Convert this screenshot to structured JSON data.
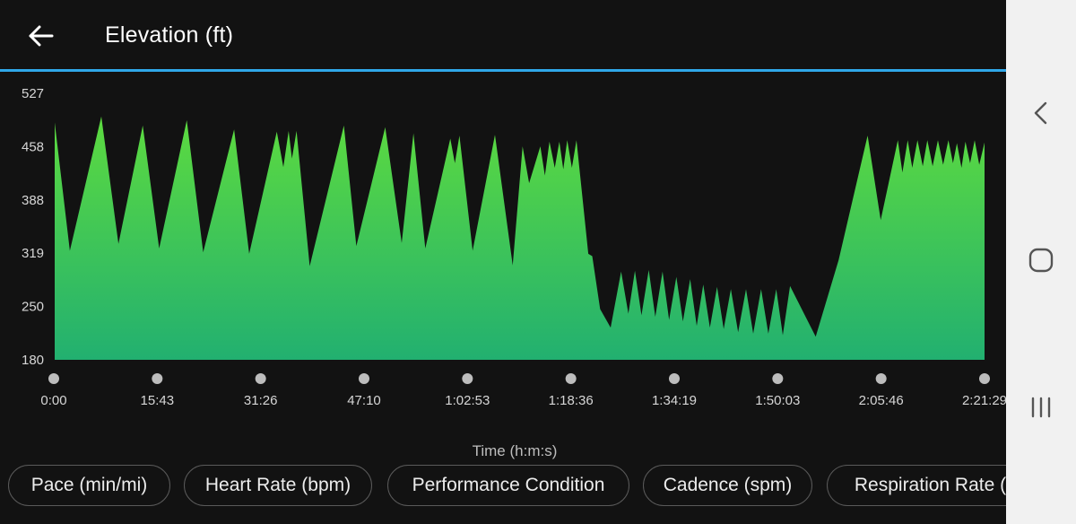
{
  "header": {
    "title": "Elevation (ft)",
    "back_icon": "arrow-left-icon"
  },
  "colors": {
    "accent": "#2fa7e8",
    "fill_top": "#5ddb3f",
    "fill_bottom": "#22b070",
    "background": "#121212"
  },
  "chart_data": {
    "type": "area",
    "ylabel": "",
    "xlabel": "Time (h:m:s)",
    "ylim": [
      180,
      527
    ],
    "yticks": [
      "527",
      "458",
      "388",
      "319",
      "250",
      "180"
    ],
    "xticks": [
      "0:00",
      "15:43",
      "31:26",
      "47:10",
      "1:02:53",
      "1:18:36",
      "1:34:19",
      "1:50:03",
      "2:05:46",
      "2:21:29"
    ],
    "xlim_minutes": [
      0,
      141.5
    ],
    "series": [
      {
        "name": "",
        "points": [
          [
            0,
            489
          ],
          [
            2.3,
            322
          ],
          [
            7.1,
            497
          ],
          [
            9.7,
            331
          ],
          [
            13.4,
            485
          ],
          [
            15.9,
            325
          ],
          [
            20.1,
            492
          ],
          [
            22.6,
            320
          ],
          [
            27.3,
            480
          ],
          [
            29.6,
            318
          ],
          [
            33.8,
            477
          ],
          [
            34.8,
            431
          ],
          [
            35.6,
            478
          ],
          [
            36.1,
            442
          ],
          [
            36.8,
            478
          ],
          [
            38.8,
            302
          ],
          [
            44.0,
            485
          ],
          [
            45.9,
            328
          ],
          [
            50.3,
            483
          ],
          [
            52.8,
            332
          ],
          [
            54.6,
            475
          ],
          [
            56.4,
            325
          ],
          [
            60.2,
            468
          ],
          [
            60.9,
            436
          ],
          [
            61.6,
            472
          ],
          [
            63.6,
            322
          ],
          [
            67.0,
            473
          ],
          [
            69.7,
            303
          ],
          [
            71.2,
            458
          ],
          [
            72.2,
            410
          ],
          [
            73.9,
            458
          ],
          [
            74.6,
            420
          ],
          [
            75.3,
            464
          ],
          [
            76.1,
            430
          ],
          [
            76.8,
            464
          ],
          [
            77.4,
            428
          ],
          [
            78.0,
            466
          ],
          [
            78.7,
            430
          ],
          [
            79.4,
            466
          ],
          [
            80.3,
            392
          ],
          [
            81.2,
            318
          ],
          [
            81.8,
            315
          ],
          [
            83.0,
            246
          ],
          [
            84.6,
            222
          ],
          [
            86.2,
            295
          ],
          [
            87.3,
            240
          ],
          [
            88.3,
            296
          ],
          [
            89.3,
            238
          ],
          [
            90.4,
            297
          ],
          [
            91.4,
            236
          ],
          [
            92.5,
            295
          ],
          [
            93.5,
            232
          ],
          [
            94.6,
            288
          ],
          [
            95.6,
            230
          ],
          [
            96.7,
            285
          ],
          [
            97.7,
            224
          ],
          [
            98.7,
            278
          ],
          [
            99.7,
            222
          ],
          [
            100.8,
            275
          ],
          [
            101.8,
            220
          ],
          [
            102.9,
            272
          ],
          [
            104.0,
            216
          ],
          [
            105.2,
            272
          ],
          [
            106.3,
            214
          ],
          [
            107.5,
            272
          ],
          [
            108.6,
            214
          ],
          [
            109.8,
            272
          ],
          [
            110.8,
            212
          ],
          [
            111.9,
            276
          ],
          [
            115.8,
            210
          ],
          [
            119.3,
            310
          ],
          [
            123.7,
            472
          ],
          [
            125.7,
            362
          ],
          [
            128.3,
            466
          ],
          [
            129.0,
            424
          ],
          [
            129.8,
            466
          ],
          [
            130.5,
            430
          ],
          [
            131.3,
            466
          ],
          [
            132.1,
            432
          ],
          [
            132.8,
            466
          ],
          [
            133.6,
            432
          ],
          [
            134.4,
            466
          ],
          [
            135.2,
            434
          ],
          [
            136.0,
            466
          ],
          [
            136.7,
            436
          ],
          [
            137.3,
            462
          ],
          [
            138.0,
            430
          ],
          [
            138.6,
            464
          ],
          [
            139.3,
            436
          ],
          [
            140.0,
            466
          ],
          [
            140.7,
            434
          ],
          [
            141.5,
            463
          ]
        ]
      }
    ]
  },
  "chips": [
    {
      "label": "Pace (min/mi)"
    },
    {
      "label": "Heart Rate (bpm)"
    },
    {
      "label": "Performance Condition"
    },
    {
      "label": "Cadence (spm)"
    },
    {
      "label": "Respiration Rate ("
    }
  ],
  "system_nav": {
    "back": "nav-back-icon",
    "home": "nav-home-icon",
    "recents": "nav-recents-icon"
  }
}
